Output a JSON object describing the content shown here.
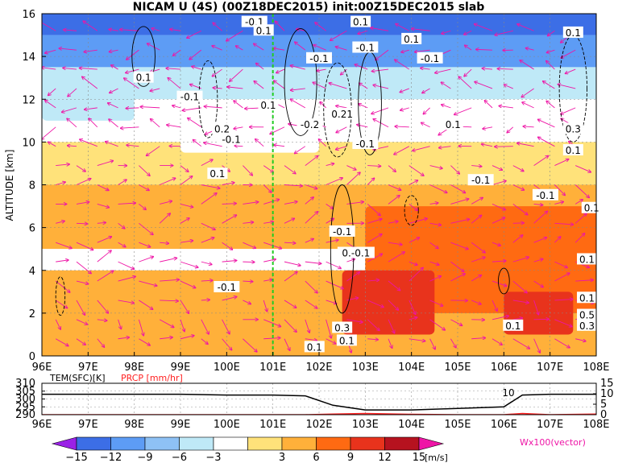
{
  "title": "NICAM U (4S) (00Z18DEC2015) init:00Z15DEC2015 slab",
  "chart_data": [
    {
      "type": "heatmap",
      "title": "NICAM U (4S) (00Z18DEC2015) init:00Z15DEC2015 slab",
      "xlabel": "",
      "ylabel": "ALTITUDE [km]",
      "x_ticks": [
        "96E",
        "97E",
        "98E",
        "99E",
        "100E",
        "101E",
        "102E",
        "103E",
        "104E",
        "105E",
        "106E",
        "107E",
        "108E"
      ],
      "y_ticks": [
        "0",
        "2",
        "4",
        "6",
        "8",
        "10",
        "12",
        "14",
        "16"
      ],
      "xlim": [
        96,
        108
      ],
      "ylim": [
        0,
        16
      ],
      "marker_longitude": 101,
      "bands": [
        {
          "alt_min": 15,
          "alt_max": 16,
          "u": -15
        },
        {
          "alt_min": 13.5,
          "alt_max": 15,
          "u": -10
        },
        {
          "alt_min": 12,
          "alt_max": 13.5,
          "u": -5
        },
        {
          "alt_min": 10,
          "alt_max": 12,
          "u": 0
        },
        {
          "alt_min": 8,
          "alt_max": 10,
          "u": 5
        },
        {
          "alt_min": 5,
          "alt_max": 8,
          "u": 7
        },
        {
          "alt_min": 4,
          "alt_max": 5,
          "u": 2
        },
        {
          "alt_min": 0,
          "alt_max": 4,
          "u": 8
        }
      ],
      "patches": [
        {
          "lon_min": 103,
          "lon_max": 108,
          "alt_min": 2,
          "alt_max": 7,
          "u": 10
        },
        {
          "lon_min": 102.5,
          "lon_max": 104.5,
          "alt_min": 1,
          "alt_max": 4,
          "u": 13
        },
        {
          "lon_min": 106,
          "lon_max": 107.5,
          "alt_min": 1,
          "alt_max": 3,
          "u": 13
        },
        {
          "lon_min": 99,
          "lon_max": 102,
          "alt_min": 9.5,
          "alt_max": 12,
          "u": 0
        },
        {
          "lon_min": 96,
          "lon_max": 98,
          "alt_min": 11,
          "alt_max": 13,
          "u": -5
        }
      ],
      "contour_labels": [
        {
          "text": "-0.1",
          "lon": 100.6,
          "alt": 15.6
        },
        {
          "text": "0.1",
          "lon": 102.9,
          "alt": 15.6
        },
        {
          "text": "0.1",
          "lon": 100.8,
          "alt": 15.2
        },
        {
          "text": "-0.1",
          "lon": 103.0,
          "alt": 14.4
        },
        {
          "text": "0.1",
          "lon": 104.0,
          "alt": 14.8
        },
        {
          "text": "-0.1",
          "lon": 104.4,
          "alt": 13.9
        },
        {
          "text": "0.1",
          "lon": 107.5,
          "alt": 15.1
        },
        {
          "text": "-0.1",
          "lon": 102.0,
          "alt": 13.9
        },
        {
          "text": "0.1",
          "lon": 98.2,
          "alt": 13.0
        },
        {
          "text": "-0.1",
          "lon": 99.2,
          "alt": 12.1
        },
        {
          "text": "0.1",
          "lon": 100.9,
          "alt": 11.7
        },
        {
          "text": "0.21",
          "lon": 102.5,
          "alt": 11.3
        },
        {
          "text": "-0.2",
          "lon": 101.8,
          "alt": 10.8
        },
        {
          "text": "0.2",
          "lon": 99.9,
          "alt": 10.6
        },
        {
          "text": "-0.1",
          "lon": 100.1,
          "alt": 10.1
        },
        {
          "text": "-0.1",
          "lon": 103.0,
          "alt": 9.9
        },
        {
          "text": "0.1",
          "lon": 104.9,
          "alt": 10.8
        },
        {
          "text": "0.3",
          "lon": 107.5,
          "alt": 10.6
        },
        {
          "text": "0.1",
          "lon": 107.5,
          "alt": 9.6
        },
        {
          "text": "0.1",
          "lon": 99.8,
          "alt": 8.5
        },
        {
          "text": "-0.1",
          "lon": 105.5,
          "alt": 8.2
        },
        {
          "text": "-0.1",
          "lon": 106.9,
          "alt": 7.5
        },
        {
          "text": "0.1",
          "lon": 107.9,
          "alt": 6.9
        },
        {
          "text": "-0.1",
          "lon": 102.5,
          "alt": 5.8
        },
        {
          "text": "0.-0.1",
          "lon": 102.8,
          "alt": 4.8
        },
        {
          "text": "0.1",
          "lon": 107.8,
          "alt": 4.5
        },
        {
          "text": "-0.1",
          "lon": 100.0,
          "alt": 3.2
        },
        {
          "text": "0.1",
          "lon": 107.8,
          "alt": 2.7
        },
        {
          "text": "0.5",
          "lon": 107.8,
          "alt": 1.9
        },
        {
          "text": "0.3",
          "lon": 107.8,
          "alt": 1.4
        },
        {
          "text": "0.1",
          "lon": 106.2,
          "alt": 1.4
        },
        {
          "text": "0.3",
          "lon": 102.5,
          "alt": 1.3
        },
        {
          "text": "0.1",
          "lon": 102.6,
          "alt": 0.7
        },
        {
          "text": "0.1",
          "lon": 101.9,
          "alt": 0.4
        }
      ]
    },
    {
      "type": "line",
      "title": "",
      "x": [
        96,
        97,
        98,
        99,
        100,
        101,
        101.7,
        102.3,
        103,
        104,
        105,
        106,
        106.4,
        107,
        108
      ],
      "series": [
        {
          "name": "TEM(SFC)[K]",
          "color": "#000000",
          "values": [
            303,
            303,
            303,
            303,
            302.5,
            302.5,
            302,
            296,
            293,
            293,
            294,
            295,
            302.5,
            303,
            303
          ]
        },
        {
          "name": "PRCP [mm/hr]",
          "color": "#ff2020",
          "values": [
            0,
            0,
            0,
            0,
            0,
            0,
            0,
            0.3,
            0.6,
            0.2,
            0,
            0,
            0.6,
            0,
            0.3
          ]
        }
      ],
      "left_ticks": [
        "310",
        "305",
        "300",
        "295",
        "290"
      ],
      "left_ylim": [
        290,
        310
      ],
      "right_ticks": [
        "15",
        "10",
        "5",
        "0"
      ],
      "annotation": "10"
    }
  ],
  "colorbar": {
    "ticks": [
      "−15",
      "−12",
      "−9",
      "−6",
      "−3",
      "3",
      "6",
      "9",
      "12",
      "15"
    ],
    "unit": "[m/s]",
    "colors": [
      "#9a22e6",
      "#3c6ee6",
      "#5d9cf5",
      "#8ec1f5",
      "#bfe9f7",
      "#ffffff",
      "#ffe27a",
      "#ffb03a",
      "#ff6a12",
      "#e8331c",
      "#b6121f",
      "#ee15a6"
    ],
    "vector_label": "Wx100(vector)"
  }
}
